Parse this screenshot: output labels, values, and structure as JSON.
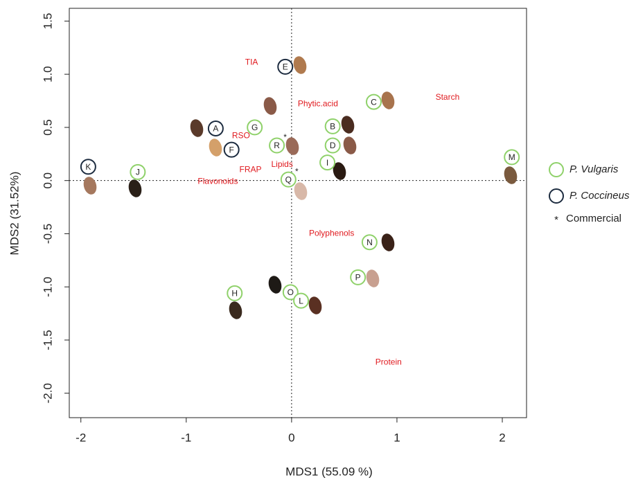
{
  "chart_data": {
    "type": "scatter",
    "xlabel": "MDS1 (55.09 %)",
    "ylabel": "MDS2 (31.52%)",
    "xlim": [
      -2.11,
      2.23
    ],
    "ylim": [
      -2.23,
      1.62
    ],
    "xticks": [
      -2,
      -1,
      0,
      1,
      2
    ],
    "yticks": [
      {
        "value": -2,
        "label": "-2.0"
      },
      {
        "value": -1.5,
        "label": "-1.5"
      },
      {
        "value": -1,
        "label": "-1.0"
      },
      {
        "value": -0.5,
        "label": "-0.5"
      },
      {
        "value": 0,
        "label": "0.0"
      },
      {
        "value": 0.5,
        "label": "0.5"
      },
      {
        "value": 1,
        "label": "1.0"
      },
      {
        "value": 1.5,
        "label": "1.5"
      }
    ],
    "hlines": [
      0
    ],
    "vlines": [
      0
    ],
    "commercial_marker": "*",
    "commercial_label": "Commercial",
    "series": [
      {
        "name": "P. Vulgaris",
        "color": "#8fd16a",
        "labels": [
          "C",
          "G",
          "B",
          "R",
          "D",
          "I",
          "M",
          "J",
          "Q",
          "N",
          "P",
          "H",
          "O",
          "L"
        ],
        "x": [
          0.78,
          -0.35,
          0.39,
          -0.14,
          0.39,
          0.34,
          2.09,
          -1.46,
          -0.03,
          0.74,
          0.63,
          -0.54,
          -0.01,
          0.09
        ],
        "values": [
          0.74,
          0.5,
          0.51,
          0.33,
          0.33,
          0.17,
          0.22,
          0.08,
          0.01,
          -0.58,
          -0.91,
          -1.06,
          -1.05,
          -1.13
        ],
        "commercial": [
          false,
          false,
          false,
          true,
          false,
          false,
          false,
          false,
          true,
          false,
          false,
          false,
          false,
          false
        ]
      },
      {
        "name": "P. Coccineus",
        "color": "#1c2b3f",
        "labels": [
          "E",
          "A",
          "F",
          "K"
        ],
        "x": [
          -0.06,
          -0.72,
          -0.57,
          -1.93
        ],
        "values": [
          1.07,
          0.49,
          0.29,
          0.13
        ]
      }
    ],
    "variables": {
      "color": "#e0191e",
      "labels": [
        "TIA",
        "Phytic.acid",
        "Starch",
        "RSO",
        "FRAP",
        "Lipids",
        "Flavonoids",
        "Polyphenols",
        "Protein"
      ],
      "x": [
        -0.38,
        0.25,
        1.48,
        -0.48,
        -0.39,
        -0.09,
        -0.7,
        0.38,
        0.92
      ],
      "values": [
        1.11,
        0.72,
        0.78,
        0.42,
        0.1,
        0.15,
        -0.01,
        -0.5,
        -1.71
      ]
    }
  }
}
